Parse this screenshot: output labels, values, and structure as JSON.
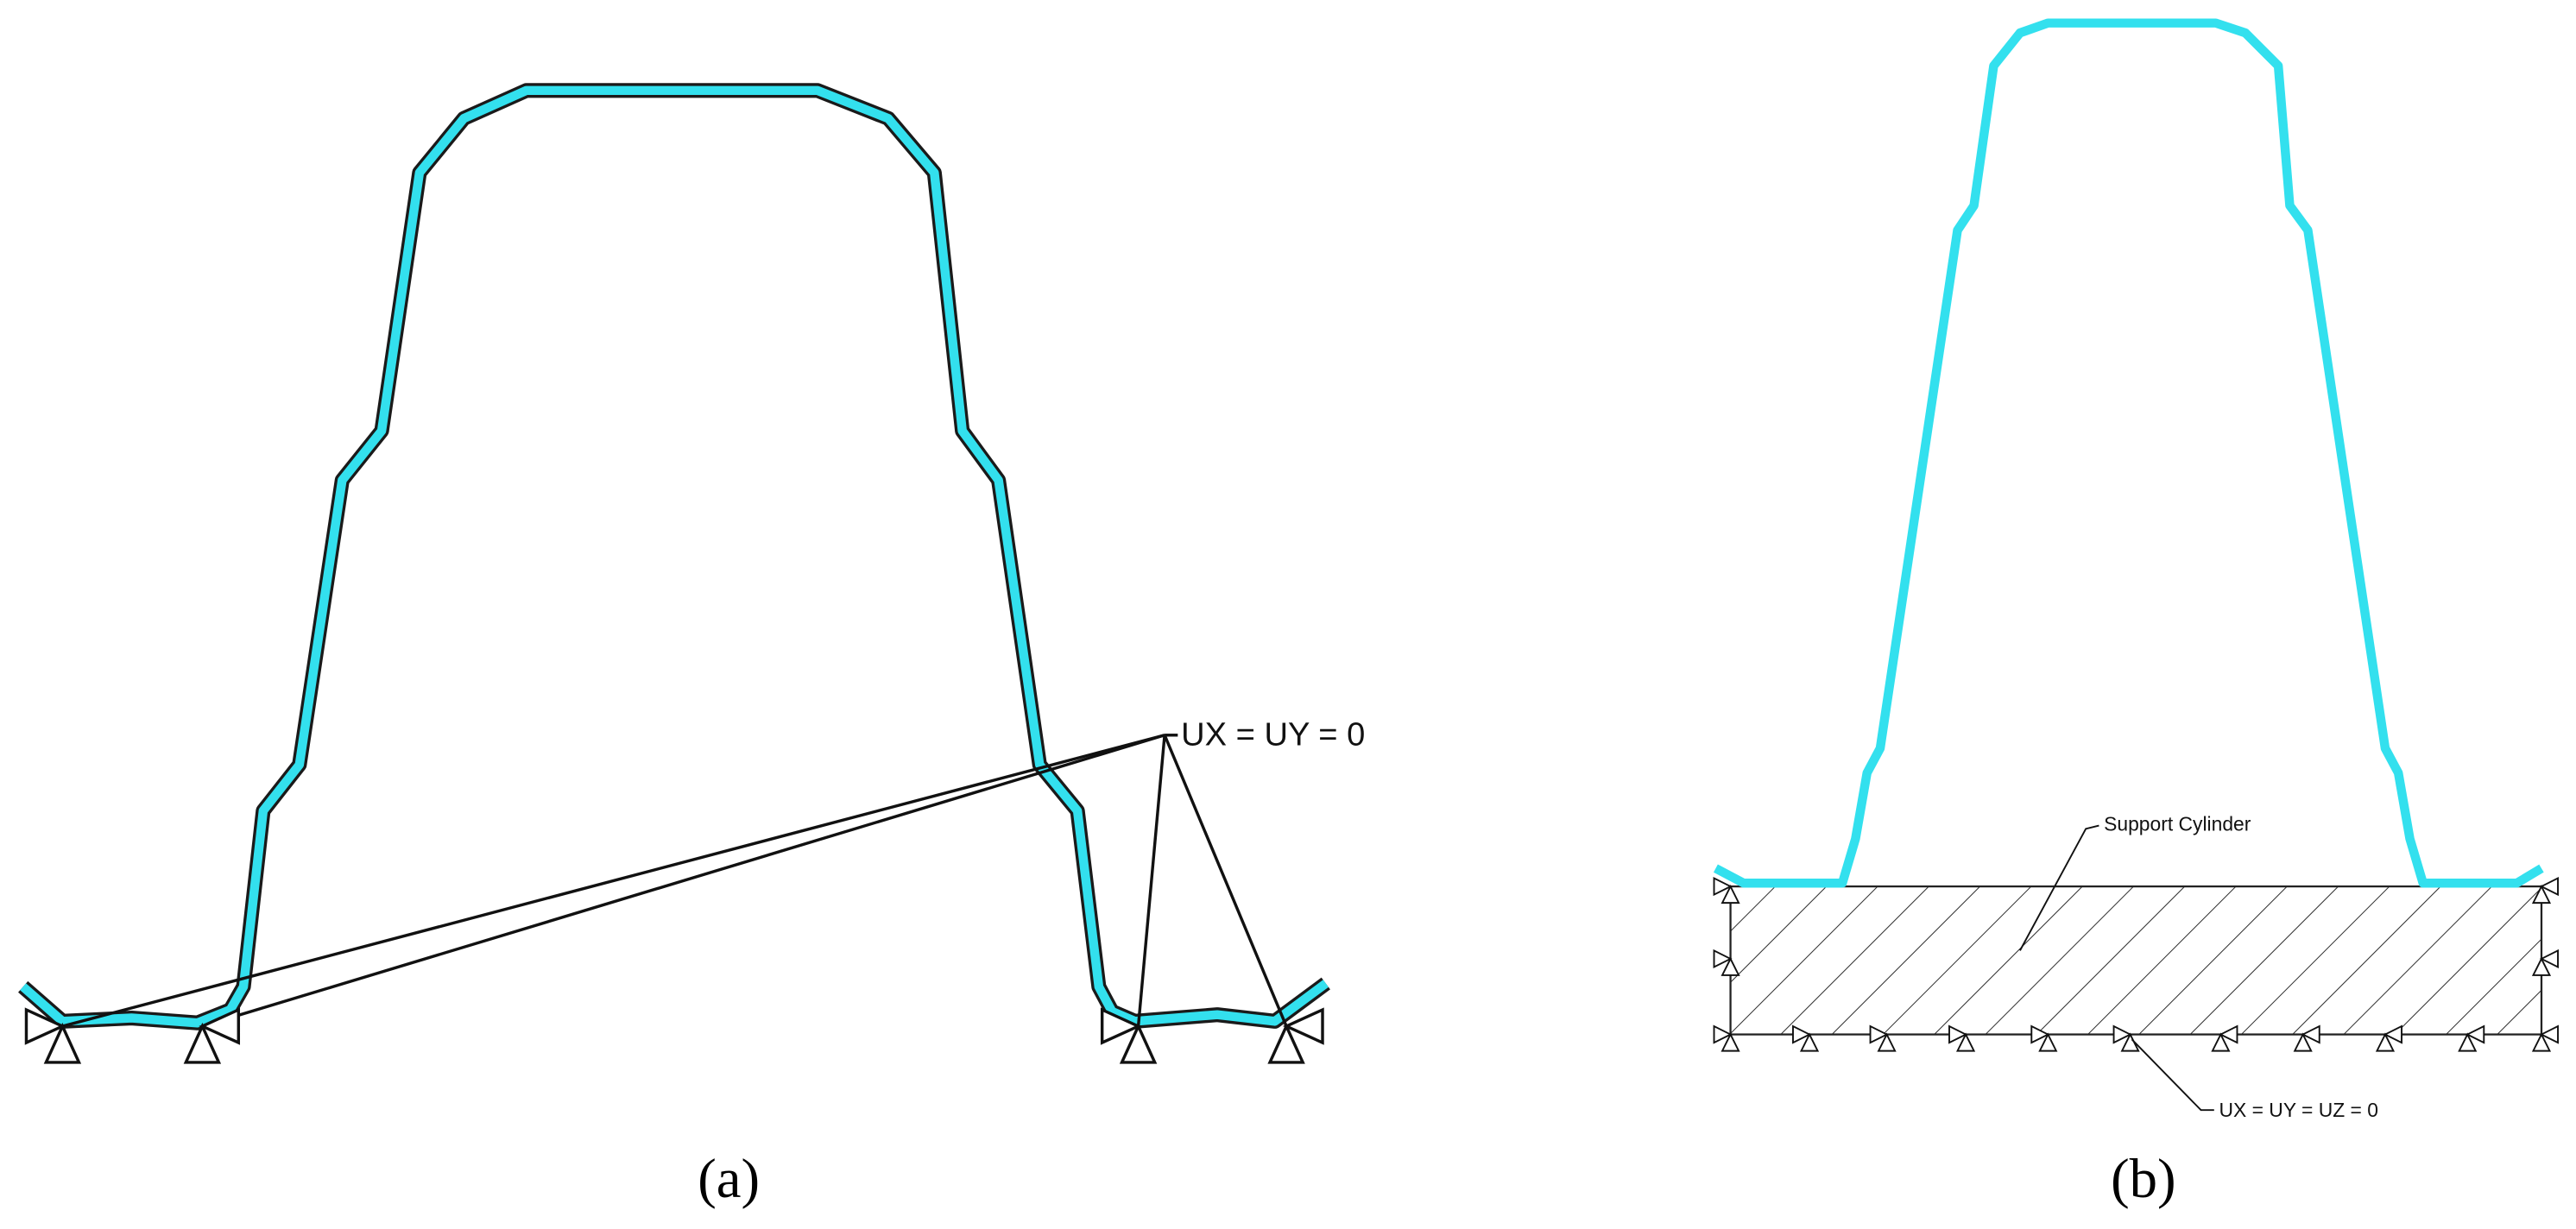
{
  "panels": [
    {
      "label": "(a)",
      "annotations": [
        "UX = UY = 0"
      ]
    },
    {
      "label": "(b)",
      "annotations": [
        "Support Cylinder",
        "UX = UY = UZ = 0"
      ]
    }
  ]
}
